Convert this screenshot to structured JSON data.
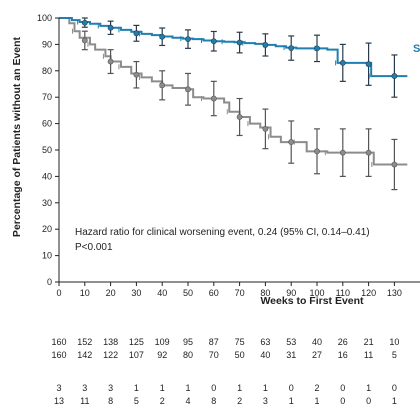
{
  "chart_data": {
    "type": "line",
    "subtype": "kaplan-meier",
    "title": "",
    "xlabel": "Weeks to First Event",
    "ylabel": "Percentage of Patients without an Event",
    "xlim": [
      0,
      135
    ],
    "ylim": [
      0,
      100
    ],
    "x_ticks": [
      0,
      10,
      20,
      30,
      40,
      50,
      60,
      70,
      80,
      90,
      100,
      110,
      120,
      130
    ],
    "y_ticks": [
      0,
      10,
      20,
      30,
      40,
      50,
      60,
      70,
      80,
      90,
      100
    ],
    "grid": false,
    "series_label_blue": "S",
    "annotation": {
      "line1": "Hazard ratio for clinical worsening event, 0.24 (95% CI, 0.14–0.41)",
      "line2": "P<0.001"
    },
    "series": [
      {
        "color": "#1f7fb0",
        "steps": [
          [
            0,
            100
          ],
          [
            5,
            99.2
          ],
          [
            8,
            98.5
          ],
          [
            12,
            97.8
          ],
          [
            16,
            97.0
          ],
          [
            20,
            96.3
          ],
          [
            24,
            95.5
          ],
          [
            28,
            94.8
          ],
          [
            32,
            94.0
          ],
          [
            36,
            93.5
          ],
          [
            40,
            93.0
          ],
          [
            44,
            92.5
          ],
          [
            48,
            92.2
          ],
          [
            52,
            92.0
          ],
          [
            56,
            91.5
          ],
          [
            60,
            91.2
          ],
          [
            64,
            91.0
          ],
          [
            68,
            90.8
          ],
          [
            72,
            90.5
          ],
          [
            76,
            90.2
          ],
          [
            80,
            89.8
          ],
          [
            84,
            89.3
          ],
          [
            88,
            88.8
          ],
          [
            92,
            88.5
          ],
          [
            100,
            88.5
          ],
          [
            104,
            88.0
          ],
          [
            108,
            83.0
          ],
          [
            118,
            83.0
          ],
          [
            121,
            78.0
          ],
          [
            135,
            78.0
          ]
        ],
        "ci_points": [
          {
            "x": 10,
            "y": 98.2,
            "lo": 96.5,
            "hi": 100
          },
          {
            "x": 20,
            "y": 96.3,
            "lo": 93.8,
            "hi": 98.8
          },
          {
            "x": 30,
            "y": 94.2,
            "lo": 91.2,
            "hi": 97.2
          },
          {
            "x": 40,
            "y": 92.9,
            "lo": 89.6,
            "hi": 96.2
          },
          {
            "x": 50,
            "y": 92.0,
            "lo": 88.5,
            "hi": 95.5
          },
          {
            "x": 60,
            "y": 91.2,
            "lo": 87.5,
            "hi": 94.9
          },
          {
            "x": 70,
            "y": 90.7,
            "lo": 86.8,
            "hi": 94.6
          },
          {
            "x": 80,
            "y": 89.8,
            "lo": 85.6,
            "hi": 94.0
          },
          {
            "x": 90,
            "y": 88.6,
            "lo": 84.0,
            "hi": 93.2
          },
          {
            "x": 100,
            "y": 88.5,
            "lo": 83.5,
            "hi": 93.5
          },
          {
            "x": 110,
            "y": 83.0,
            "lo": 76.0,
            "hi": 90.0
          },
          {
            "x": 120,
            "y": 82.5,
            "lo": 74.5,
            "hi": 90.5
          },
          {
            "x": 130,
            "y": 78.0,
            "lo": 70.0,
            "hi": 86.0
          }
        ]
      },
      {
        "color": "#8c8c8c",
        "steps": [
          [
            0,
            100
          ],
          [
            4,
            98.0
          ],
          [
            6,
            95.0
          ],
          [
            8,
            92.5
          ],
          [
            12,
            90.0
          ],
          [
            14,
            88.0
          ],
          [
            18,
            85.5
          ],
          [
            20,
            83.5
          ],
          [
            24,
            81.5
          ],
          [
            28,
            79.0
          ],
          [
            32,
            77.5
          ],
          [
            36,
            76.0
          ],
          [
            40,
            74.5
          ],
          [
            44,
            73.5
          ],
          [
            50,
            73.0
          ],
          [
            52,
            70.0
          ],
          [
            56,
            69.5
          ],
          [
            64,
            68.0
          ],
          [
            66,
            64.5
          ],
          [
            70,
            62.5
          ],
          [
            74,
            60.0
          ],
          [
            78,
            58.5
          ],
          [
            82,
            55.0
          ],
          [
            86,
            53.0
          ],
          [
            92,
            53.0
          ],
          [
            96,
            49.5
          ],
          [
            104,
            49.0
          ],
          [
            112,
            49.0
          ],
          [
            122,
            44.5
          ],
          [
            135,
            44.5
          ]
        ],
        "ci_points": [
          {
            "x": 10,
            "y": 91.5,
            "lo": 88.0,
            "hi": 95.0
          },
          {
            "x": 20,
            "y": 83.5,
            "lo": 79.0,
            "hi": 88.0
          },
          {
            "x": 30,
            "y": 78.5,
            "lo": 73.5,
            "hi": 83.5
          },
          {
            "x": 40,
            "y": 74.5,
            "lo": 69.0,
            "hi": 80.0
          },
          {
            "x": 50,
            "y": 73.0,
            "lo": 67.0,
            "hi": 79.0
          },
          {
            "x": 60,
            "y": 69.5,
            "lo": 63.0,
            "hi": 76.0
          },
          {
            "x": 70,
            "y": 62.5,
            "lo": 55.5,
            "hi": 69.5
          },
          {
            "x": 80,
            "y": 58.0,
            "lo": 50.5,
            "hi": 65.5
          },
          {
            "x": 90,
            "y": 53.0,
            "lo": 45.0,
            "hi": 61.0
          },
          {
            "x": 100,
            "y": 49.5,
            "lo": 41.0,
            "hi": 58.0
          },
          {
            "x": 110,
            "y": 49.0,
            "lo": 40.0,
            "hi": 58.0
          },
          {
            "x": 120,
            "y": 49.0,
            "lo": 40.0,
            "hi": 58.0
          },
          {
            "x": 130,
            "y": 44.5,
            "lo": 35.0,
            "hi": 54.0
          }
        ]
      }
    ],
    "risk_table": {
      "rows": [
        [
          "160",
          "152",
          "138",
          "125",
          "109",
          "95",
          "87",
          "75",
          "63",
          "53",
          "40",
          "26",
          "21",
          "10"
        ],
        [
          "160",
          "142",
          "122",
          "107",
          "92",
          "80",
          "70",
          "50",
          "40",
          "31",
          "27",
          "16",
          "11",
          "5"
        ],
        [
          "3",
          "3",
          "3",
          "1",
          "1",
          "1",
          "0",
          "1",
          "1",
          "0",
          "2",
          "0",
          "1",
          "0"
        ],
        [
          "13",
          "11",
          "8",
          "5",
          "2",
          "4",
          "8",
          "2",
          "3",
          "1",
          "1",
          "0",
          "0",
          "1"
        ]
      ]
    }
  }
}
